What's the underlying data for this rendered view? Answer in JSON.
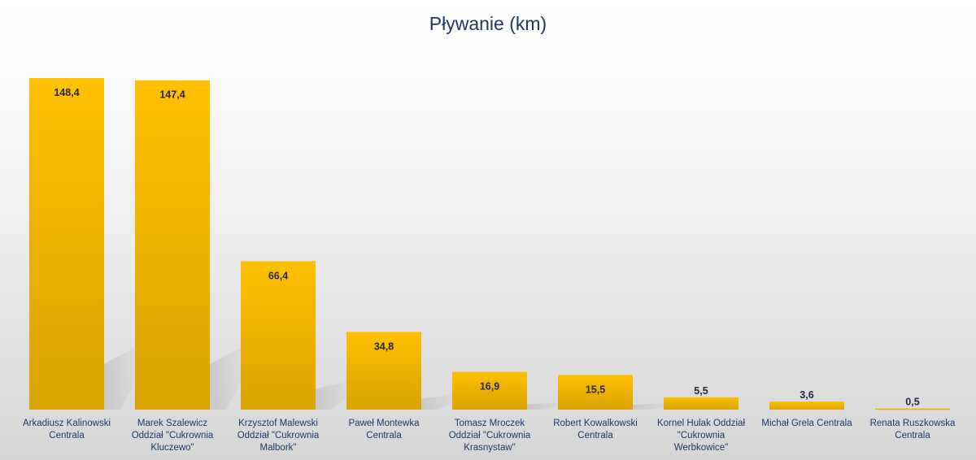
{
  "chart_data": {
    "type": "bar",
    "title": "Pływanie (km)",
    "categories": [
      [
        "Arkadiusz Kalinowski",
        "Centrala"
      ],
      [
        "Marek Szalewicz",
        "Oddział \"Cukrownia",
        "Kluczewo\""
      ],
      [
        "Krzysztof Malewski",
        "Oddział \"Cukrownia",
        "Malbork\""
      ],
      [
        "Paweł Montewka",
        "Centrala"
      ],
      [
        "Tomasz Mroczek",
        "Oddział \"Cukrownia",
        "Krasnystaw\""
      ],
      [
        "Robert Kowalkowski",
        "Centrala"
      ],
      [
        "Kornel Hulak Oddział",
        "\"Cukrownia",
        "Werbkowice\""
      ],
      [
        "Michał Grela Centrala"
      ],
      [
        "Renata Ruszkowska",
        "Centrala"
      ]
    ],
    "values": [
      148.4,
      147.4,
      66.4,
      34.8,
      16.9,
      15.5,
      5.5,
      3.6,
      0.5
    ],
    "value_labels": [
      "148,4",
      "147,4",
      "66,4",
      "34,8",
      "16,9",
      "15,5",
      "5,5",
      "3,6",
      "0,5"
    ],
    "ylim": [
      0,
      148.4
    ],
    "grid": false,
    "legend": "none",
    "colors": {
      "bar_top": "#ffc000",
      "bar_bottom": "#d9a300",
      "title": "#1f3864",
      "label": "#1f3864"
    }
  }
}
